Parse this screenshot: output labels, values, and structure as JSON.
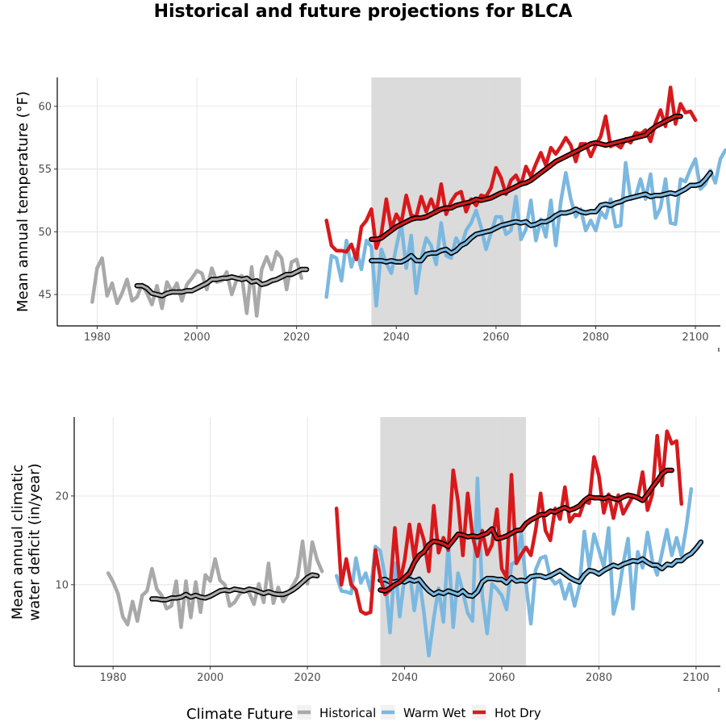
{
  "title": "Historical and future projections for BLCA",
  "colors": {
    "historical": "#a9a9a9",
    "warm_wet": "#7bb8e0",
    "hot_dry": "#d7191c",
    "band": "#d9d9d9"
  },
  "legend": {
    "title": "Climate Future",
    "items": [
      {
        "label": "Historical",
        "color_key": "historical"
      },
      {
        "label": "Warm Wet",
        "color_key": "warm_wet"
      },
      {
        "label": "Hot Dry",
        "color_key": "hot_dry"
      }
    ]
  },
  "chart_data": [
    {
      "type": "line",
      "ylabel_lines": [
        "Mean annual temperature (°F)"
      ],
      "xlim": [
        1972,
        2105
      ],
      "ylim": [
        42.5,
        62.3
      ],
      "xticks": [
        1980,
        2000,
        2020,
        2040,
        2060,
        2080,
        2100
      ],
      "yticks": [
        45,
        50,
        55,
        60
      ],
      "grid": true,
      "shaded_range": [
        2035,
        2065
      ],
      "series": [
        {
          "color_key": "historical",
          "role": "annual",
          "x_start": 1979,
          "values": [
            44.4,
            47.1,
            47.9,
            44.9,
            45.9,
            44.3,
            45.1,
            46.2,
            44.5,
            44.8,
            45.8,
            45.1,
            44.2,
            45.7,
            43.9,
            46.0,
            45.2,
            45.9,
            44.5,
            45.8,
            46.3,
            46.9,
            46.7,
            45.4,
            47.1,
            46.0,
            46.1,
            46.8,
            45.0,
            46.2,
            46.5,
            43.5,
            47.2,
            43.3,
            47.0,
            48.0,
            47.0,
            48.4,
            47.9,
            45.4,
            47.6,
            47.8,
            46.3
          ]
        },
        {
          "color_key": "historical",
          "role": "smoothed",
          "x_start": 1988,
          "values": [
            45.7,
            45.7,
            45.5,
            45.1,
            45.0,
            44.9,
            45.1,
            45.2,
            45.2,
            45.2,
            45.3,
            45.3,
            45.5,
            45.7,
            45.9,
            46.2,
            46.2,
            46.3,
            46.3,
            46.4,
            46.3,
            46.2,
            46.3,
            46.0,
            46.1,
            45.8,
            45.9,
            46.1,
            46.2,
            46.4,
            46.6,
            46.6,
            46.8,
            47.0,
            47.0
          ]
        },
        {
          "color_key": "warm_wet",
          "role": "annual",
          "x_start": 2026,
          "values": [
            44.8,
            48.1,
            47.9,
            46.1,
            49.3,
            47.2,
            48.6,
            47.0,
            49.3,
            48.8,
            44.1,
            48.6,
            47.5,
            46.7,
            48.8,
            50.6,
            47.1,
            49.7,
            45.1,
            47.9,
            49.5,
            48.9,
            47.4,
            50.7,
            48.1,
            47.9,
            49.5,
            48.8,
            50.1,
            50.7,
            51.7,
            50.4,
            48.6,
            49.9,
            51.2,
            51.2,
            49.8,
            50.1,
            52.8,
            49.4,
            50.2,
            52.5,
            49.3,
            51.0,
            49.6,
            52.5,
            48.9,
            52.4,
            54.7,
            52.6,
            51.2,
            51.8,
            50.1,
            50.9,
            50.1,
            51.6,
            51.1,
            52.6,
            50.4,
            50.5,
            55.5,
            52.6,
            52.8,
            54.2,
            52.6,
            54.6,
            51.1,
            51.9,
            54.2,
            50.7,
            50.6,
            54.2,
            54.0,
            55.0,
            55.8,
            53.4,
            53.8,
            54.9,
            53.9,
            55.8,
            56.5
          ]
        },
        {
          "color_key": "warm_wet",
          "role": "smoothed",
          "x_start": 2035,
          "values": [
            47.7,
            47.7,
            47.7,
            47.6,
            47.7,
            47.6,
            47.6,
            47.8,
            48.1,
            47.7,
            47.7,
            48.2,
            48.3,
            48.3,
            48.5,
            48.6,
            48.3,
            48.5,
            48.9,
            49.1,
            49.5,
            49.8,
            49.9,
            50.0,
            50.1,
            50.3,
            50.5,
            50.6,
            50.7,
            50.8,
            50.7,
            50.8,
            50.5,
            50.6,
            50.8,
            50.8,
            51.0,
            51.3,
            51.5,
            51.5,
            51.6,
            51.8,
            51.6,
            51.5,
            51.6,
            51.6,
            52.1,
            52.2,
            52.1,
            52.3,
            52.4,
            52.6,
            52.7,
            52.8,
            52.9,
            53.0,
            52.8,
            52.9,
            52.9,
            53.0,
            53.1,
            53.0,
            53.2,
            53.4,
            53.7,
            53.7,
            53.8,
            54.2,
            54.7
          ]
        },
        {
          "color_key": "hot_dry",
          "role": "annual",
          "x_start": 2026,
          "values": [
            50.9,
            48.9,
            48.5,
            48.5,
            48.4,
            49.0,
            47.8,
            50.4,
            50.9,
            51.8,
            48.7,
            49.8,
            52.6,
            50.2,
            51.4,
            50.7,
            52.9,
            51.3,
            51.2,
            52.8,
            51.6,
            52.6,
            51.5,
            53.8,
            51.4,
            52.4,
            53.0,
            53.2,
            51.6,
            52.6,
            52.1,
            52.9,
            52.8,
            53.5,
            55.1,
            54.3,
            53.0,
            54.1,
            54.5,
            53.7,
            55.2,
            54.4,
            55.4,
            56.3,
            55.3,
            56.7,
            56.2,
            56.8,
            57.5,
            56.9,
            55.6,
            57.0,
            57.0,
            56.0,
            56.9,
            57.6,
            59.2,
            56.8,
            57.0,
            56.7,
            57.4,
            57.1,
            57.9,
            57.8,
            58.1,
            57.2,
            58.7,
            59.7,
            58.4,
            61.5,
            58.6,
            60.2,
            59.5,
            59.6,
            58.9
          ]
        },
        {
          "color_key": "hot_dry",
          "role": "smoothed",
          "x_start": 2035,
          "values": [
            49.4,
            49.4,
            49.5,
            49.8,
            50.1,
            50.4,
            50.6,
            50.8,
            51.0,
            51.1,
            51.1,
            51.2,
            51.4,
            51.6,
            51.8,
            51.9,
            51.9,
            52.1,
            52.2,
            52.3,
            52.4,
            52.6,
            52.5,
            52.6,
            52.7,
            52.9,
            53.1,
            53.2,
            53.4,
            53.6,
            53.8,
            53.9,
            54.1,
            54.4,
            54.7,
            55.0,
            55.3,
            55.6,
            55.8,
            56.0,
            56.2,
            56.4,
            56.6,
            56.8,
            57.0,
            57.1,
            57.0,
            56.9,
            57.0,
            57.1,
            57.2,
            57.3,
            57.4,
            57.5,
            57.6,
            57.7,
            58.1,
            58.4,
            58.6,
            58.8,
            59.0,
            59.2,
            59.2
          ]
        }
      ]
    },
    {
      "type": "line",
      "ylabel_lines": [
        "Mean annual climatic",
        "water deficit (in/year)"
      ],
      "xlim": [
        1972,
        2105
      ],
      "ylim": [
        0.8,
        28.9
      ],
      "xticks": [
        1980,
        2000,
        2020,
        2040,
        2060,
        2080,
        2100
      ],
      "yticks": [
        10,
        20
      ],
      "grid": true,
      "shaded_range": [
        2035,
        2065
      ],
      "series": [
        {
          "color_key": "historical",
          "role": "annual",
          "x_start": 1979,
          "values": [
            11.3,
            10.3,
            9.0,
            6.4,
            5.5,
            8.1,
            5.9,
            8.8,
            9.3,
            11.8,
            9.5,
            8.8,
            7.3,
            7.6,
            10.4,
            5.2,
            10.4,
            6.3,
            10.3,
            6.9,
            11.1,
            10.4,
            12.9,
            10.5,
            10.0,
            7.6,
            8.0,
            8.9,
            9.4,
            9.1,
            7.8,
            10.1,
            8.0,
            12.4,
            7.9,
            9.7,
            8.1,
            9.0,
            9.9,
            10.9,
            14.9,
            10.1,
            14.8,
            12.8,
            11.5
          ]
        },
        {
          "color_key": "historical",
          "role": "smoothed",
          "x_start": 1988,
          "values": [
            8.4,
            8.4,
            8.3,
            8.3,
            8.5,
            8.5,
            8.6,
            8.9,
            8.6,
            8.8,
            8.6,
            8.5,
            8.7,
            9.0,
            9.3,
            9.4,
            9.3,
            9.5,
            9.4,
            9.3,
            9.5,
            9.4,
            9.2,
            9.0,
            9.2,
            9.0,
            8.9,
            8.9,
            9.1,
            9.4,
            9.8,
            10.3,
            10.8,
            11.1,
            11.0
          ]
        },
        {
          "color_key": "warm_wet",
          "role": "annual",
          "x_start": 2026,
          "values": [
            11.0,
            9.3,
            9.2,
            9.0,
            13.0,
            10.2,
            11.3,
            9.3,
            14.3,
            13.8,
            10.9,
            4.6,
            12.4,
            6.4,
            10.9,
            11.7,
            7.1,
            10.8,
            6.8,
            2.0,
            6.2,
            9.6,
            5.8,
            14.6,
            5.2,
            11.3,
            9.2,
            6.8,
            5.9,
            22.0,
            8.7,
            4.5,
            10.1,
            9.5,
            8.8,
            7.2,
            12.3,
            12.6,
            15.8,
            10.1,
            5.6,
            11.7,
            13.0,
            13.2,
            10.8,
            10.1,
            10.5,
            8.4,
            10.1,
            7.6,
            9.8,
            16.0,
            12.0,
            15.7,
            13.9,
            12.0,
            16.4,
            6.7,
            8.8,
            12.3,
            15.2,
            7.3,
            13.7,
            11.9,
            15.9,
            12.7,
            11.1,
            13.6,
            16.2,
            13.3,
            15.3,
            13.2,
            16.5,
            20.8
          ]
        },
        {
          "color_key": "warm_wet",
          "role": "smoothed",
          "x_start": 2035,
          "values": [
            10.5,
            10.6,
            10.3,
            10.3,
            10.5,
            10.3,
            10.6,
            10.4,
            10.6,
            9.9,
            9.3,
            8.9,
            9.2,
            9.0,
            9.3,
            9.1,
            8.9,
            9.3,
            8.8,
            8.7,
            9.2,
            10.3,
            10.7,
            10.7,
            10.6,
            10.6,
            10.2,
            10.8,
            10.4,
            10.5,
            10.4,
            10.9,
            11.0,
            11.0,
            10.8,
            11.0,
            11.3,
            11.6,
            11.2,
            10.8,
            10.5,
            10.3,
            11.1,
            11.6,
            11.5,
            11.2,
            11.6,
            11.9,
            12.2,
            12.0,
            12.3,
            12.5,
            12.7,
            12.6,
            12.9,
            12.5,
            12.2,
            12.2,
            11.8,
            12.3,
            12.2,
            12.7,
            12.7,
            13.2,
            13.5,
            14.1,
            14.8
          ]
        },
        {
          "color_key": "hot_dry",
          "role": "annual",
          "x_start": 2026,
          "values": [
            18.6,
            10.0,
            12.9,
            10.0,
            9.4,
            7.0,
            6.7,
            6.9,
            13.9,
            10.8,
            8.9,
            9.4,
            16.4,
            10.2,
            12.7,
            16.8,
            12.9,
            16.8,
            15.0,
            11.5,
            18.9,
            13.6,
            15.3,
            13.9,
            22.9,
            19.4,
            13.3,
            20.3,
            15.5,
            13.2,
            16.1,
            13.4,
            14.5,
            18.5,
            11.8,
            10.8,
            22.4,
            12.4,
            13.4,
            14.2,
            13.3,
            16.2,
            20.3,
            16.1,
            15.0,
            18.6,
            17.4,
            21.0,
            17.1,
            17.9,
            17.8,
            19.4,
            19.2,
            24.4,
            22.3,
            18.1,
            20.2,
            17.5,
            20.1,
            18.0,
            19.0,
            20.0,
            19.7,
            22.7,
            18.4,
            20.2,
            26.8,
            21.2,
            27.3,
            25.9,
            26.2,
            19.1
          ]
        },
        {
          "color_key": "hot_dry",
          "role": "smoothed",
          "x_start": 2035,
          "values": [
            9.4,
            9.3,
            9.6,
            10.0,
            10.3,
            10.8,
            11.3,
            12.5,
            13.3,
            13.7,
            14.5,
            14.9,
            14.8,
            14.6,
            14.3,
            15.0,
            15.7,
            15.6,
            15.4,
            15.5,
            15.4,
            15.6,
            15.8,
            16.3,
            15.2,
            15.3,
            15.5,
            15.8,
            16.1,
            16.2,
            16.9,
            17.3,
            17.6,
            17.9,
            17.9,
            18.3,
            18.2,
            18.5,
            18.7,
            18.4,
            18.6,
            18.9,
            19.5,
            19.9,
            19.8,
            19.8,
            19.7,
            19.9,
            19.7,
            19.6,
            19.9,
            20.1,
            20.0,
            19.8,
            19.5,
            20.2,
            21.0,
            21.7,
            22.5,
            22.9,
            22.9
          ]
        }
      ]
    }
  ]
}
